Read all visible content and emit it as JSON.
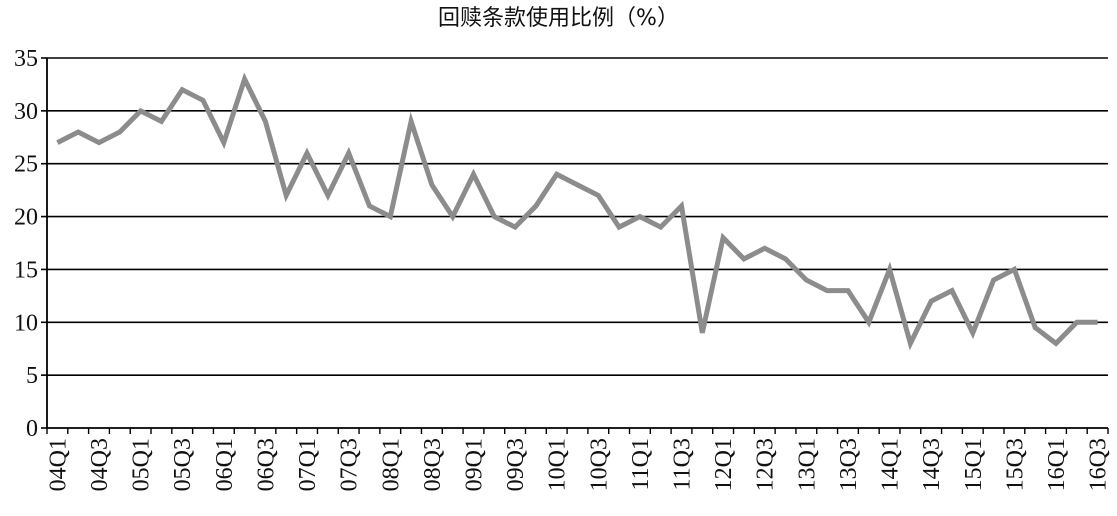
{
  "chart_data": {
    "type": "line",
    "title": "回赎条款使用比例（%）",
    "xlabel": "",
    "ylabel": "",
    "ylim": [
      0,
      35
    ],
    "yticks": [
      0,
      5,
      10,
      15,
      20,
      25,
      30,
      35
    ],
    "grid": true,
    "legend": "none",
    "categories": [
      "04Q1",
      "04Q2",
      "04Q3",
      "04Q4",
      "05Q1",
      "05Q2",
      "05Q3",
      "05Q4",
      "06Q1",
      "06Q2",
      "06Q3",
      "06Q4",
      "07Q1",
      "07Q2",
      "07Q3",
      "07Q4",
      "08Q1",
      "08Q2",
      "08Q3",
      "08Q4",
      "09Q1",
      "09Q2",
      "09Q3",
      "09Q4",
      "10Q1",
      "10Q2",
      "10Q3",
      "10Q4",
      "11Q1",
      "11Q2",
      "11Q3",
      "11Q4",
      "12Q1",
      "12Q2",
      "12Q3",
      "12Q4",
      "13Q1",
      "13Q2",
      "13Q3",
      "13Q4",
      "14Q1",
      "14Q2",
      "14Q3",
      "14Q4",
      "15Q1",
      "15Q2",
      "15Q3",
      "15Q4",
      "16Q1",
      "16Q2",
      "16Q3"
    ],
    "x_tick_labels": [
      "04Q1",
      "04Q3",
      "05Q1",
      "05Q3",
      "06Q1",
      "06Q3",
      "07Q1",
      "07Q3",
      "08Q1",
      "08Q3",
      "09Q1",
      "09Q3",
      "10Q1",
      "10Q3",
      "11Q1",
      "11Q3",
      "12Q1",
      "12Q3",
      "13Q1",
      "13Q3",
      "14Q1",
      "14Q3",
      "15Q1",
      "15Q3",
      "16Q1",
      "16Q3"
    ],
    "series": [
      {
        "values": [
          27,
          28,
          27,
          28,
          30,
          29,
          32,
          31,
          27,
          33,
          29,
          22,
          26,
          22,
          26,
          21,
          20,
          29,
          23,
          20,
          24,
          20,
          19,
          21,
          24,
          23,
          22,
          19,
          20,
          19,
          21,
          9,
          18,
          16,
          17,
          16,
          14,
          13,
          13,
          10,
          15,
          8,
          12,
          13,
          9,
          14,
          15,
          9.5,
          8,
          10,
          10
        ],
        "color": "#8c8c8c"
      }
    ]
  }
}
